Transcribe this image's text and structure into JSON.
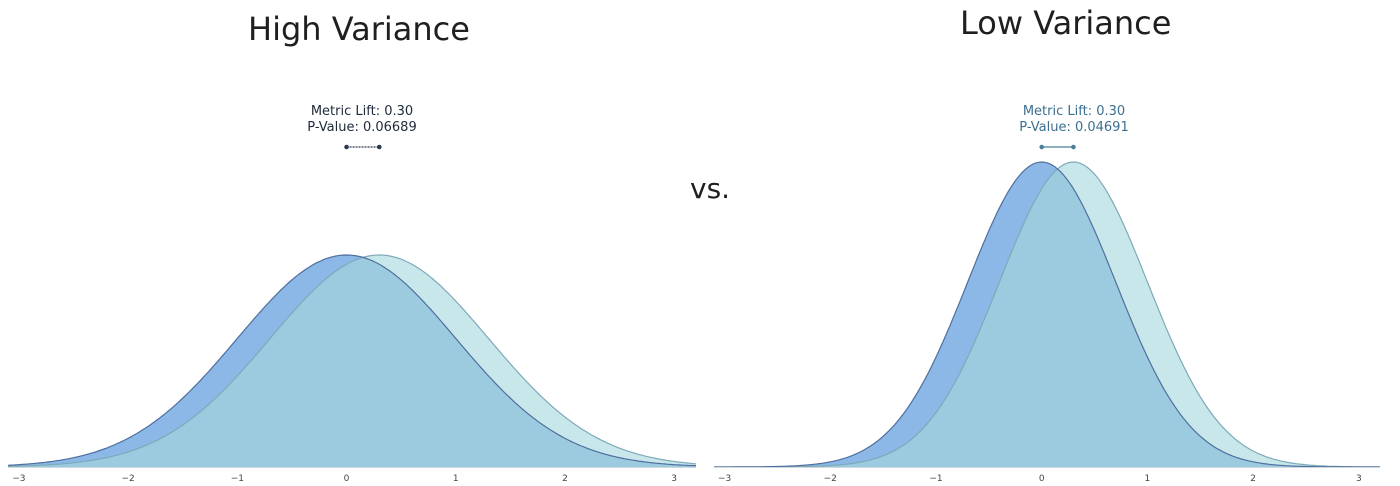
{
  "vs_label": "vs.",
  "chart_data": [
    {
      "type": "area",
      "title": "High Variance",
      "annotation": {
        "lift_label": "Metric Lift: 0.30",
        "pvalue_label": "P-Value: 0.06689"
      },
      "xlim": [
        -3.1,
        3.2
      ],
      "x_ticks": [
        "−3",
        "−2",
        "−1",
        "0",
        "1",
        "2",
        "3"
      ],
      "series": [
        {
          "mean": 0.0,
          "sd": 1.0,
          "color": "#8bb8e6"
        },
        {
          "mean": 0.3,
          "sd": 1.0,
          "color": "#c8e7ea"
        }
      ],
      "overlap_color": "#9ccbe0",
      "lift_marker": {
        "from": 0.0,
        "to": 0.3
      }
    },
    {
      "type": "area",
      "title": "Low Variance",
      "annotation": {
        "lift_label": "Metric Lift: 0.30",
        "pvalue_label": "P-Value: 0.04691"
      },
      "xlim": [
        -3.1,
        3.2
      ],
      "x_ticks": [
        "−3",
        "−2",
        "−1",
        "0",
        "1",
        "2",
        "3"
      ],
      "series": [
        {
          "mean": 0.0,
          "sd": 0.7,
          "color": "#8bb8e6"
        },
        {
          "mean": 0.3,
          "sd": 0.7,
          "color": "#c8e7ea"
        }
      ],
      "overlap_color": "#9ccbe0",
      "lift_marker": {
        "from": 0.0,
        "to": 0.3
      }
    }
  ]
}
